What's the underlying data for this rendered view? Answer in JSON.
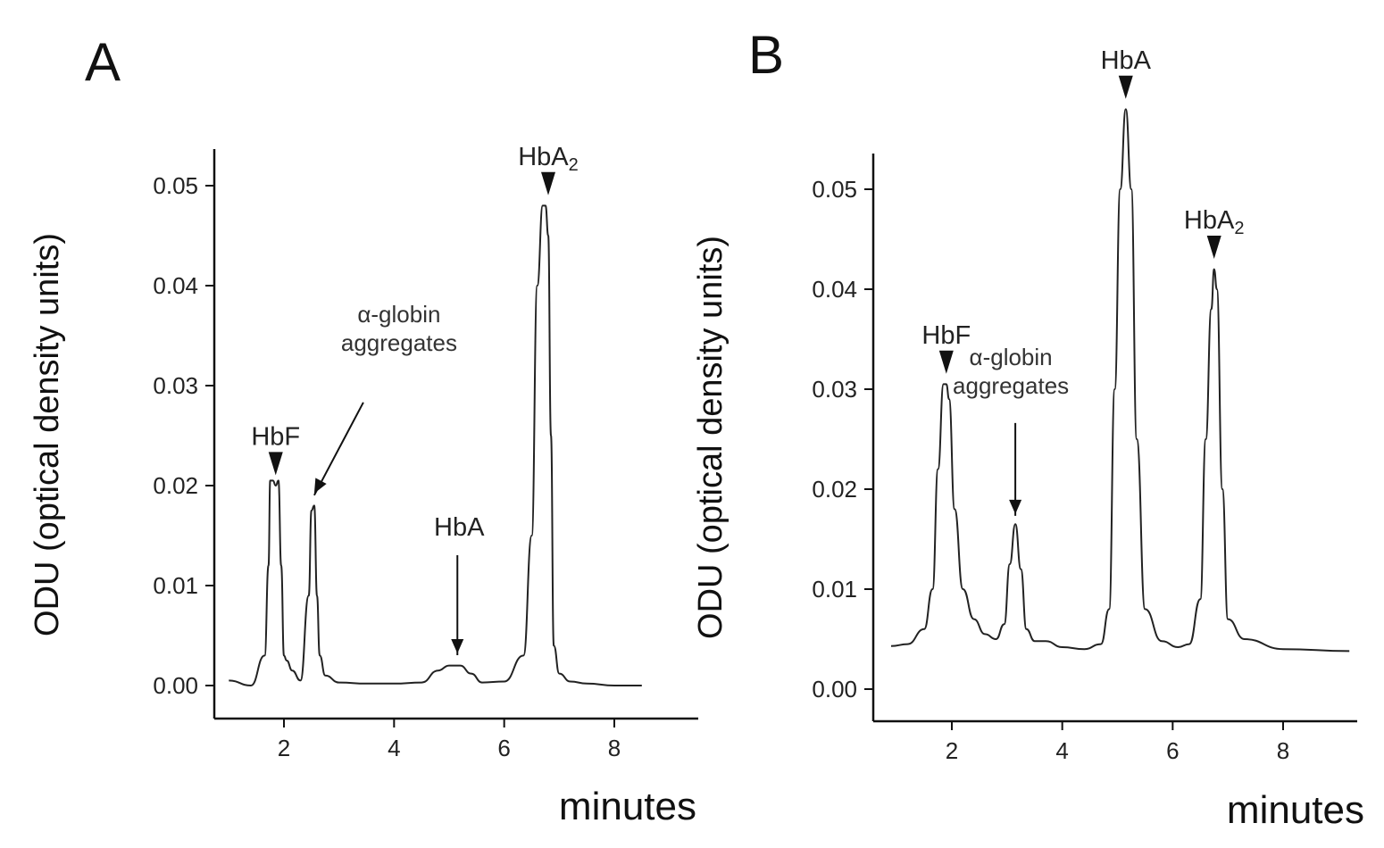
{
  "chart_data": [
    {
      "panel": "A",
      "type": "line",
      "xlabel": "minutes",
      "ylabel": "ODU (optical density units)",
      "xlim": [
        0.9,
        9.3
      ],
      "ylim": [
        0.0,
        0.05
      ],
      "x_ticks": [
        2,
        4,
        6,
        8
      ],
      "x_tick_labels": [
        "2",
        "4",
        "6",
        "8"
      ],
      "y_ticks": [
        0.0,
        0.01,
        0.02,
        0.03,
        0.04,
        0.05
      ],
      "y_tick_labels": [
        "0.00",
        "0.01",
        "0.02",
        "0.03",
        "0.04",
        "0.05"
      ],
      "series": [
        {
          "x": [
            1.0,
            1.4,
            1.65,
            1.72,
            1.75,
            1.8,
            1.85,
            1.9,
            1.95,
            2.0,
            2.05,
            2.15,
            2.3,
            2.45,
            2.5,
            2.55,
            2.6,
            2.65,
            2.75,
            3.0,
            3.5,
            4.0,
            4.5,
            4.8,
            5.0,
            5.2,
            5.4,
            5.6,
            6.0,
            6.35,
            6.5,
            6.6,
            6.7,
            6.75,
            6.8,
            6.85,
            6.9,
            7.0,
            7.2,
            7.5,
            8.0,
            8.5
          ],
          "y": [
            0.0005,
            0.0,
            0.003,
            0.012,
            0.0205,
            0.0205,
            0.02,
            0.0205,
            0.012,
            0.003,
            0.0025,
            0.0015,
            0.0005,
            0.009,
            0.0175,
            0.018,
            0.009,
            0.003,
            0.001,
            0.0003,
            0.0002,
            0.0002,
            0.0003,
            0.0015,
            0.002,
            0.002,
            0.0012,
            0.0003,
            0.0004,
            0.003,
            0.015,
            0.04,
            0.048,
            0.048,
            0.045,
            0.025,
            0.004,
            0.0012,
            0.0004,
            0.0002,
            0.0,
            0.0
          ]
        }
      ],
      "peak_labels": [
        {
          "text": "HbF",
          "x": 1.85,
          "y": 0.0205,
          "style": "triangle"
        },
        {
          "text": "α-globin",
          "line2": "aggregates",
          "x": 2.55,
          "y": 0.0185,
          "style": "arrow"
        },
        {
          "text": "HbA",
          "x": 5.15,
          "y": 0.0025,
          "style": "arrow"
        },
        {
          "text": "HbA",
          "sub": "2",
          "x": 6.8,
          "y": 0.0485,
          "style": "triangle"
        }
      ]
    },
    {
      "panel": "B",
      "type": "line",
      "xlabel": "minutes",
      "ylabel": "ODU (optical density units)",
      "xlim": [
        0.9,
        9.3
      ],
      "ylim": [
        0.0,
        0.05
      ],
      "x_ticks": [
        2,
        4,
        6,
        8
      ],
      "x_tick_labels": [
        "2",
        "4",
        "6",
        "8"
      ],
      "y_ticks": [
        0.0,
        0.01,
        0.02,
        0.03,
        0.04,
        0.05
      ],
      "y_tick_labels": [
        "0.00",
        "0.01",
        "0.02",
        "0.03",
        "0.04",
        "0.05"
      ],
      "series": [
        {
          "x": [
            0.9,
            1.2,
            1.5,
            1.65,
            1.75,
            1.85,
            1.9,
            1.95,
            2.05,
            2.2,
            2.4,
            2.6,
            2.8,
            2.95,
            3.05,
            3.15,
            3.25,
            3.35,
            3.5,
            3.7,
            4.0,
            4.4,
            4.7,
            4.85,
            4.95,
            5.05,
            5.15,
            5.25,
            5.35,
            5.5,
            5.8,
            6.1,
            6.3,
            6.5,
            6.6,
            6.7,
            6.75,
            6.8,
            6.9,
            7.0,
            7.3,
            8.0,
            9.2
          ],
          "y": [
            0.0043,
            0.0045,
            0.006,
            0.01,
            0.022,
            0.0305,
            0.0305,
            0.029,
            0.018,
            0.01,
            0.007,
            0.0055,
            0.005,
            0.0065,
            0.0125,
            0.0165,
            0.012,
            0.006,
            0.0048,
            0.0048,
            0.0042,
            0.004,
            0.0045,
            0.008,
            0.03,
            0.05,
            0.058,
            0.05,
            0.025,
            0.008,
            0.0048,
            0.0042,
            0.0045,
            0.009,
            0.025,
            0.038,
            0.042,
            0.04,
            0.02,
            0.007,
            0.005,
            0.004,
            0.0038
          ]
        }
      ],
      "peak_labels": [
        {
          "text": "HbF",
          "x": 1.9,
          "y": 0.031,
          "style": "triangle"
        },
        {
          "text": "α-globin",
          "line2": "aggregates",
          "x": 3.15,
          "y": 0.0168,
          "style": "arrow"
        },
        {
          "text": "HbA",
          "x": 5.15,
          "y": 0.0585,
          "style": "triangle"
        },
        {
          "text": "HbA",
          "sub": "2",
          "x": 6.75,
          "y": 0.0425,
          "style": "triangle"
        }
      ]
    }
  ]
}
